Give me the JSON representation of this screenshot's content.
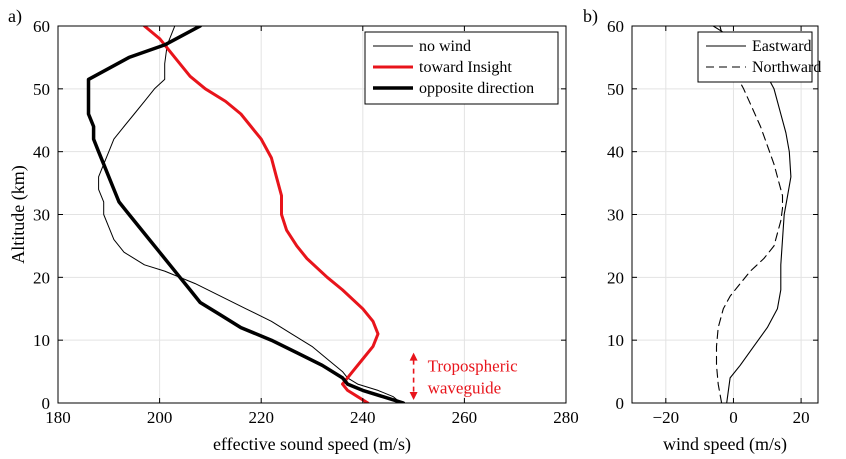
{
  "chart_data": [
    {
      "panel_label": "a)",
      "type": "line",
      "xlabel": "effective sound speed (m/s)",
      "ylabel": "Altitude (km)",
      "xlim": [
        180,
        280
      ],
      "ylim": [
        0,
        60
      ],
      "xticks": [
        180,
        200,
        220,
        240,
        260,
        280
      ],
      "yticks": [
        0,
        10,
        20,
        30,
        40,
        50,
        60
      ],
      "grid": true,
      "legend_position": "top-right",
      "series": [
        {
          "name": "no wind",
          "color": "#000000",
          "width": 1,
          "points": [
            [
              247.5,
              0
            ],
            [
              246,
              1
            ],
            [
              243,
              2
            ],
            [
              239,
              3
            ],
            [
              237,
              4
            ],
            [
              236,
              5
            ],
            [
              233,
              7
            ],
            [
              230,
              9
            ],
            [
              226,
              11
            ],
            [
              222,
              13
            ],
            [
              217,
              15
            ],
            [
              212,
              17
            ],
            [
              207,
              19
            ],
            [
              201,
              21
            ],
            [
              197,
              22
            ],
            [
              193,
              24
            ],
            [
              191,
              26
            ],
            [
              190,
              28
            ],
            [
              189,
              30
            ],
            [
              189,
              32
            ],
            [
              188,
              34
            ],
            [
              188,
              36
            ],
            [
              189,
              38
            ],
            [
              190,
              40
            ],
            [
              191,
              42
            ],
            [
              193,
              44
            ],
            [
              195,
              46
            ],
            [
              197,
              48
            ],
            [
              199,
              50
            ],
            [
              201,
              51.5
            ],
            [
              201,
              54
            ],
            [
              201.5,
              57
            ],
            [
              203,
              60
            ]
          ]
        },
        {
          "name": "toward Insight",
          "color": "#e8141b",
          "width": 3,
          "points": [
            [
              241,
              0
            ],
            [
              239,
              1
            ],
            [
              237,
              2
            ],
            [
              236,
              3
            ],
            [
              238,
              5
            ],
            [
              240,
              7
            ],
            [
              242,
              9
            ],
            [
              243,
              11
            ],
            [
              242,
              13
            ],
            [
              240,
              15
            ],
            [
              236,
              18
            ],
            [
              233,
              20
            ],
            [
              229,
              23
            ],
            [
              227,
              25
            ],
            [
              225,
              27.5
            ],
            [
              224,
              30
            ],
            [
              224,
              33
            ],
            [
              223,
              36
            ],
            [
              222,
              39
            ],
            [
              220,
              42
            ],
            [
              218,
              44
            ],
            [
              216,
              46
            ],
            [
              213,
              48
            ],
            [
              209,
              50
            ],
            [
              206,
              52
            ],
            [
              203,
              55
            ],
            [
              200,
              58
            ],
            [
              197,
              60
            ]
          ]
        },
        {
          "name": "opposite direction",
          "color": "#000000",
          "width": 3.5,
          "points": [
            [
              248,
              0
            ],
            [
              244,
              1
            ],
            [
              240,
              2
            ],
            [
              237,
              3
            ],
            [
              236,
              4
            ],
            [
              232,
              6
            ],
            [
              227,
              8
            ],
            [
              222,
              10
            ],
            [
              216,
              12
            ],
            [
              212,
              14
            ],
            [
              208,
              16
            ],
            [
              206,
              18
            ],
            [
              204,
              20
            ],
            [
              202,
              22
            ],
            [
              200,
              24
            ],
            [
              198,
              26
            ],
            [
              196,
              28
            ],
            [
              194,
              30
            ],
            [
              192,
              32
            ],
            [
              191,
              34
            ],
            [
              190,
              36
            ],
            [
              189,
              38
            ],
            [
              188,
              40
            ],
            [
              187,
              42
            ],
            [
              187,
              44
            ],
            [
              186,
              46
            ],
            [
              186,
              47
            ],
            [
              186,
              51.5
            ],
            [
              194,
              55
            ],
            [
              201,
              57
            ],
            [
              208,
              60
            ]
          ]
        }
      ],
      "annotation": {
        "text_line1": "Tropospheric",
        "text_line2": "waveguide",
        "color": "#e8141b",
        "arrow_x": 250,
        "arrow_range": [
          0,
          8.5
        ]
      }
    },
    {
      "panel_label": "b)",
      "type": "line",
      "xlabel": "wind speed (m/s)",
      "ylabel": "",
      "xlim": [
        -30,
        25
      ],
      "ylim": [
        0,
        60
      ],
      "xticks": [
        -20,
        0,
        20
      ],
      "yticks": [
        0,
        10,
        20,
        30,
        40,
        50,
        60
      ],
      "grid": true,
      "legend_position": "top-right",
      "series": [
        {
          "name": "Eastward",
          "color": "#000000",
          "dash": "none",
          "points": [
            [
              -2,
              0
            ],
            [
              -1.5,
              2
            ],
            [
              -1,
              4
            ],
            [
              2,
              6
            ],
            [
              6,
              9
            ],
            [
              10,
              12
            ],
            [
              13,
              15
            ],
            [
              14,
              18
            ],
            [
              14,
              22
            ],
            [
              14.5,
              26
            ],
            [
              15,
              30
            ],
            [
              16,
              33
            ],
            [
              17,
              36
            ],
            [
              16.5,
              40
            ],
            [
              15.5,
              43
            ],
            [
              14,
              46
            ],
            [
              12,
              50
            ],
            [
              9,
              53
            ],
            [
              4,
              56
            ],
            [
              -3,
              59
            ],
            [
              -6,
              60
            ]
          ]
        },
        {
          "name": "Northward",
          "color": "#000000",
          "dash": "8,5",
          "points": [
            [
              -3.5,
              0
            ],
            [
              -4.5,
              3
            ],
            [
              -5,
              6
            ],
            [
              -5,
              9
            ],
            [
              -4.5,
              12
            ],
            [
              -3,
              15
            ],
            [
              -1,
              17
            ],
            [
              2,
              19
            ],
            [
              5,
              21
            ],
            [
              9,
              23
            ],
            [
              12,
              25
            ],
            [
              13,
              27
            ],
            [
              14,
              29
            ],
            [
              14.5,
              31
            ],
            [
              14.5,
              33
            ],
            [
              13.5,
              35
            ],
            [
              12,
              38
            ],
            [
              10,
              41
            ],
            [
              8,
              44
            ],
            [
              5.5,
              47
            ],
            [
              3,
              50
            ],
            [
              0,
              53
            ],
            [
              -1.5,
              56
            ],
            [
              -3,
              58
            ],
            [
              -4,
              60
            ]
          ]
        }
      ]
    }
  ]
}
